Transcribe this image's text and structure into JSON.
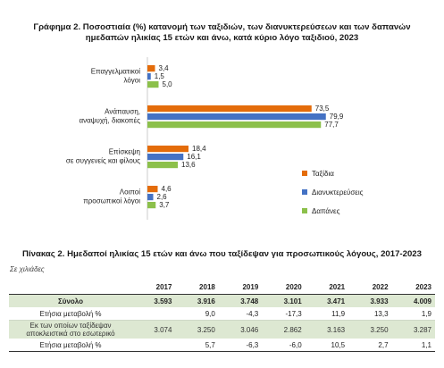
{
  "chart_data": {
    "type": "bar",
    "orientation": "horizontal",
    "title_line1": "Γράφημα 2. Ποσοστιαία (%) κατανομή των ταξιδιών, των διανυκτερεύσεων και των δαπανών",
    "title_line2": "ημεδαπών ηλικίας 15 ετών και άνω, κατά κύριο λόγο ταξιδιού, 2023",
    "categories": [
      [
        "Επαγγελματικοί",
        "λόγοι"
      ],
      [
        "Ανάπαυση,",
        "αναψυχή, διακοπές"
      ],
      [
        "Επίσκεψη",
        "σε συγγενείς και φίλους"
      ],
      [
        "Λοιποί",
        "προσωπικοί λόγοι"
      ]
    ],
    "series": [
      {
        "name": "Ταξίδια",
        "color": "#e46c0a",
        "values": [
          3.4,
          73.5,
          18.4,
          4.6
        ],
        "labels": [
          "3,4",
          "73,5",
          "18,4",
          "4,6"
        ]
      },
      {
        "name": "Διανυκτερεύσεις",
        "color": "#4472c4",
        "values": [
          1.5,
          79.9,
          16.1,
          2.6
        ],
        "labels": [
          "1,5",
          "79,9",
          "16,1",
          "2,6"
        ]
      },
      {
        "name": "Δαπάνες",
        "color": "#8cc04b",
        "values": [
          5.0,
          77.7,
          13.6,
          3.7
        ],
        "labels": [
          "5,0",
          "77,7",
          "13,6",
          "3,7"
        ]
      }
    ],
    "xlim": [
      0,
      100
    ],
    "grid": false,
    "legend_position": "bottom-right"
  },
  "table": {
    "title": "Πίνακας 2. Ημεδαποί ηλικίας 15 ετών και άνω που ταξίδεψαν για προσωπικούς λόγους, 2017-2023",
    "unit": "Σε χιλιάδες",
    "years": [
      "2017",
      "2018",
      "2019",
      "2020",
      "2021",
      "2022",
      "2023"
    ],
    "rows": [
      {
        "label": "Σύνολο",
        "values": [
          "3.593",
          "3.916",
          "3.748",
          "3.101",
          "3.471",
          "3.933",
          "4.009"
        ]
      },
      {
        "label": "Ετήσια μεταβολή %",
        "values": [
          "",
          "9,0",
          "-4,3",
          "-17,3",
          "11,9",
          "13,3",
          "1,9"
        ]
      },
      {
        "label_line1": "Εκ των οποίων ταξίδεψαν",
        "label_line2": "αποκλειστικά στο εσωτερικό",
        "values": [
          "3.074",
          "3.250",
          "3.046",
          "2.862",
          "3.163",
          "3.250",
          "3.287"
        ]
      },
      {
        "label": "Ετήσια μεταβολή %",
        "values": [
          "",
          "5,7",
          "-6,3",
          "-6,0",
          "10,5",
          "2,7",
          "1,1"
        ]
      }
    ]
  }
}
